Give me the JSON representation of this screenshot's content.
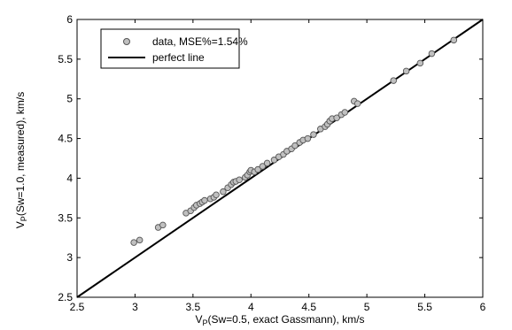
{
  "chart_data": {
    "type": "scatter",
    "xlabel_parts": [
      "V",
      "P",
      "(Sw=0.5, exact Gassmann), km/s"
    ],
    "ylabel_parts": [
      "V",
      "P",
      "(Sw=1.0, measured), km/s"
    ],
    "xlim": [
      2.5,
      6
    ],
    "ylim": [
      2.5,
      6
    ],
    "xticks": [
      "2.5",
      "3",
      "3.5",
      "4",
      "4.5",
      "5",
      "5.5",
      "6"
    ],
    "yticks": [
      "2.5",
      "3",
      "3.5",
      "4",
      "4.5",
      "5",
      "5.5",
      "6"
    ],
    "legend_placement": "top-left",
    "series": [
      {
        "name": "data, MSE%=1.54%",
        "kind": "points",
        "marker_fill": "#c0c0c0",
        "marker_edge": "#555555",
        "points": [
          [
            2.99,
            3.19
          ],
          [
            3.04,
            3.22
          ],
          [
            3.2,
            3.38
          ],
          [
            3.24,
            3.41
          ],
          [
            3.44,
            3.56
          ],
          [
            3.48,
            3.59
          ],
          [
            3.51,
            3.63
          ],
          [
            3.53,
            3.66
          ],
          [
            3.56,
            3.68
          ],
          [
            3.58,
            3.7
          ],
          [
            3.6,
            3.72
          ],
          [
            3.65,
            3.74
          ],
          [
            3.68,
            3.76
          ],
          [
            3.7,
            3.79
          ],
          [
            3.76,
            3.83
          ],
          [
            3.8,
            3.88
          ],
          [
            3.83,
            3.92
          ],
          [
            3.85,
            3.95
          ],
          [
            3.87,
            3.96
          ],
          [
            3.9,
            3.98
          ],
          [
            3.95,
            4.01
          ],
          [
            3.97,
            4.04
          ],
          [
            3.99,
            4.08
          ],
          [
            4.0,
            4.1
          ],
          [
            4.03,
            4.08
          ],
          [
            4.06,
            4.11
          ],
          [
            4.1,
            4.15
          ],
          [
            4.14,
            4.19
          ],
          [
            4.2,
            4.23
          ],
          [
            4.24,
            4.27
          ],
          [
            4.28,
            4.3
          ],
          [
            4.31,
            4.34
          ],
          [
            4.35,
            4.37
          ],
          [
            4.38,
            4.41
          ],
          [
            4.42,
            4.45
          ],
          [
            4.45,
            4.48
          ],
          [
            4.49,
            4.5
          ],
          [
            4.54,
            4.55
          ],
          [
            4.6,
            4.62
          ],
          [
            4.64,
            4.65
          ],
          [
            4.66,
            4.68
          ],
          [
            4.68,
            4.72
          ],
          [
            4.7,
            4.75
          ],
          [
            4.74,
            4.76
          ],
          [
            4.78,
            4.8
          ],
          [
            4.81,
            4.83
          ],
          [
            4.89,
            4.97
          ],
          [
            4.92,
            4.94
          ],
          [
            5.23,
            5.23
          ],
          [
            5.34,
            5.35
          ],
          [
            5.46,
            5.45
          ],
          [
            5.56,
            5.57
          ],
          [
            5.75,
            5.74
          ]
        ]
      },
      {
        "name": "perfect line",
        "kind": "line",
        "color": "#000000",
        "points": [
          [
            2.5,
            2.5
          ],
          [
            6,
            6
          ]
        ]
      }
    ]
  }
}
